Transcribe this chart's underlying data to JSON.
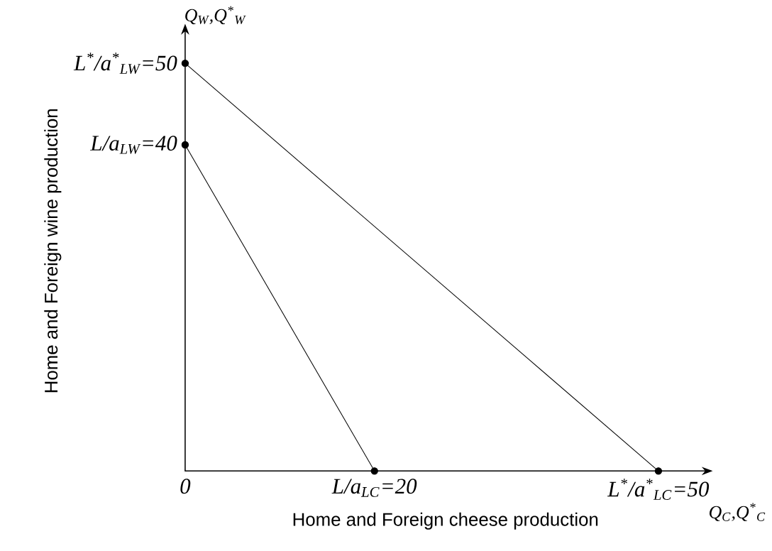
{
  "chart_data": {
    "type": "line",
    "series": [
      {
        "color": "#000000",
        "x": [
          0,
          50
        ],
        "values": [
          50,
          0
        ]
      },
      {
        "color": "#000000",
        "x": [
          0,
          20
        ],
        "values": [
          40,
          0
        ]
      }
    ],
    "xlim": [
      0,
      55
    ],
    "ylim": [
      0,
      54
    ],
    "xticks": [
      {
        "value": 0,
        "label": "0"
      },
      {
        "value": 20,
        "label": "L/a$_{LC}$=20"
      },
      {
        "value": 50,
        "label": "L$^{*}$/a$^{*}$$_{LC}$=50"
      }
    ],
    "yticks": [
      {
        "value": 0,
        "label": null
      },
      {
        "value": 40,
        "label": "L/a$_{LW}$=40"
      },
      {
        "value": 50,
        "label": "L$^{*}$/a$^{*}$$_{LW}$=50"
      }
    ],
    "xlabel": "Home and Foreign cheese production",
    "ylabel": "Home and Foreign wine production",
    "annotations": [
      "Q$_{W}$,Q$^{*}$$_{W}$",
      "Q$_{C}$,Q$^{*}$$_{C}$"
    ],
    "marker": "circle"
  }
}
